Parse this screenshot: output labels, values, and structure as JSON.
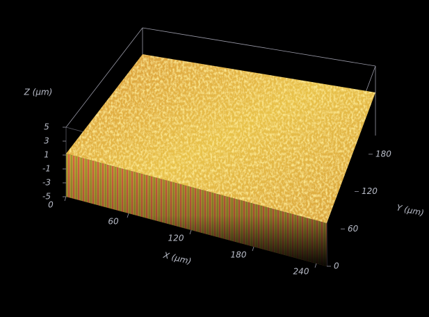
{
  "chart_data": {
    "type": "surface3d",
    "x_label": "X (µm)",
    "y_label": "Y (µm)",
    "z_label": "Z (µm)",
    "xlim": [
      0,
      250
    ],
    "ylim": [
      0,
      210
    ],
    "zlim": [
      -5,
      5
    ],
    "xticks": [
      0,
      60,
      120,
      180,
      240
    ],
    "yticks": [
      0,
      60,
      120,
      180
    ],
    "zticks": [
      5,
      3,
      1,
      -1,
      -3,
      -5
    ],
    "background": "#000000"
  }
}
